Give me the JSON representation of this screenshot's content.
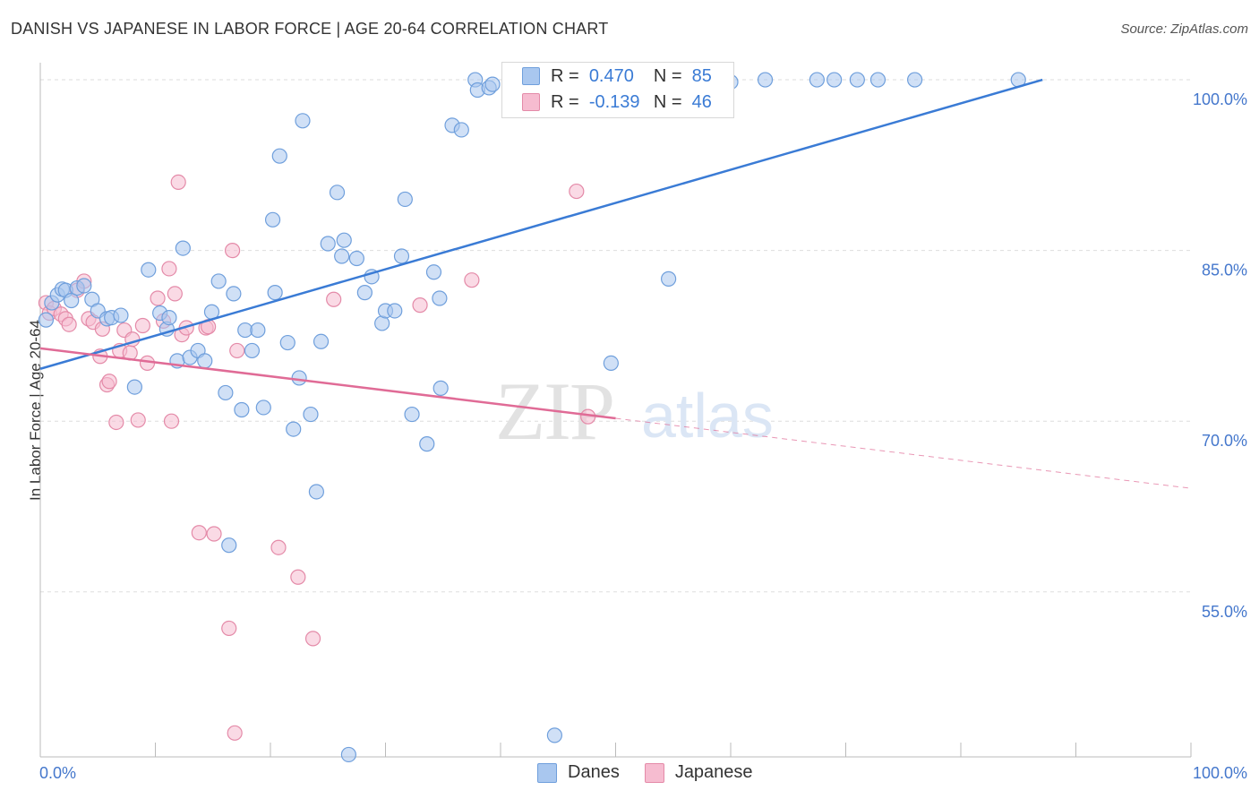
{
  "title": "DANISH VS JAPANESE IN LABOR FORCE | AGE 20-64 CORRELATION CHART",
  "source": "Source: ZipAtlas.com",
  "watermark": {
    "zip": "ZIP",
    "atlas": "atlas"
  },
  "legend": {
    "r_label": "R =",
    "n_label": "N =",
    "danes": {
      "r": "0.470",
      "n": "85"
    },
    "japanese": {
      "r": "-0.139",
      "n": "46"
    }
  },
  "bottom_legend": {
    "danes": "Danes",
    "japanese": "Japanese"
  },
  "colors": {
    "danes_fill": "#a9c7ef",
    "danes_stroke": "#6f9fdc",
    "danes_line": "#3a7bd5",
    "japanese_fill": "#f6bcd0",
    "japanese_stroke": "#e48aa8",
    "japanese_line": "#e06b96",
    "axis_text": "#4477cc"
  },
  "chart_data": {
    "type": "scatter",
    "title": "DANISH VS JAPANESE IN LABOR FORCE | AGE 20-64 CORRELATION CHART",
    "xlabel": "",
    "ylabel": "In Labor Force | Age 20-64",
    "xlim": [
      0,
      100
    ],
    "ylim": [
      40.5,
      101.5
    ],
    "x_tick_labels": [
      "0.0%",
      "100.0%"
    ],
    "y_ticks": [
      55,
      70,
      85,
      100
    ],
    "y_tick_labels": [
      "55.0%",
      "70.0%",
      "85.0%",
      "100.0%"
    ],
    "grid": true,
    "legend_position": "top-center",
    "series": [
      {
        "name": "Danes",
        "points": [
          [
            0.5,
            78.9
          ],
          [
            1.0,
            80.4
          ],
          [
            1.5,
            81.1
          ],
          [
            1.9,
            81.6
          ],
          [
            2.2,
            81.5
          ],
          [
            2.7,
            80.6
          ],
          [
            3.2,
            81.7
          ],
          [
            3.8,
            81.9
          ],
          [
            4.5,
            80.7
          ],
          [
            5.0,
            79.7
          ],
          [
            5.8,
            79.0
          ],
          [
            6.2,
            79.1
          ],
          [
            7.0,
            79.3
          ],
          [
            8.2,
            73.0
          ],
          [
            9.4,
            83.3
          ],
          [
            10.4,
            79.5
          ],
          [
            11.0,
            78.1
          ],
          [
            11.2,
            79.1
          ],
          [
            11.9,
            75.3
          ],
          [
            12.4,
            85.2
          ],
          [
            13.0,
            75.6
          ],
          [
            13.7,
            76.2
          ],
          [
            14.3,
            75.3
          ],
          [
            14.9,
            79.6
          ],
          [
            15.5,
            82.3
          ],
          [
            16.1,
            72.5
          ],
          [
            16.4,
            59.1
          ],
          [
            16.8,
            81.2
          ],
          [
            17.5,
            71.0
          ],
          [
            17.8,
            78.0
          ],
          [
            18.4,
            76.2
          ],
          [
            18.9,
            78.0
          ],
          [
            19.4,
            71.2
          ],
          [
            20.2,
            87.7
          ],
          [
            20.4,
            81.3
          ],
          [
            20.8,
            93.3
          ],
          [
            21.5,
            76.9
          ],
          [
            22.0,
            69.3
          ],
          [
            22.5,
            73.8
          ],
          [
            22.8,
            96.4
          ],
          [
            23.5,
            70.6
          ],
          [
            24.0,
            63.8
          ],
          [
            24.4,
            77.0
          ],
          [
            25.0,
            85.6
          ],
          [
            25.8,
            90.1
          ],
          [
            26.2,
            84.5
          ],
          [
            26.4,
            85.9
          ],
          [
            26.8,
            40.7
          ],
          [
            27.5,
            84.3
          ],
          [
            28.2,
            81.3
          ],
          [
            28.8,
            82.7
          ],
          [
            29.7,
            78.6
          ],
          [
            30.0,
            79.7
          ],
          [
            30.8,
            79.7
          ],
          [
            31.4,
            84.5
          ],
          [
            31.7,
            89.5
          ],
          [
            32.3,
            70.6
          ],
          [
            33.6,
            68.0
          ],
          [
            34.2,
            83.1
          ],
          [
            34.7,
            80.8
          ],
          [
            34.8,
            72.9
          ],
          [
            35.8,
            96.0
          ],
          [
            36.6,
            95.6
          ],
          [
            37.8,
            100.0
          ],
          [
            38.0,
            99.1
          ],
          [
            39.0,
            99.3
          ],
          [
            39.3,
            99.6
          ],
          [
            42.0,
            100.0
          ],
          [
            44.7,
            42.4
          ],
          [
            46.0,
            99.9
          ],
          [
            49.0,
            100.0
          ],
          [
            49.6,
            75.1
          ],
          [
            51.7,
            99.9
          ],
          [
            52.8,
            100.0
          ],
          [
            54.0,
            100.0
          ],
          [
            54.6,
            82.5
          ],
          [
            55.0,
            100.0
          ],
          [
            60.0,
            99.8
          ],
          [
            63.0,
            100.0
          ],
          [
            67.5,
            100.0
          ],
          [
            69.0,
            100.0
          ],
          [
            71.0,
            100.0
          ],
          [
            72.8,
            100.0
          ],
          [
            76.0,
            100.0
          ],
          [
            85.0,
            100.0
          ]
        ],
        "trendline": {
          "x": [
            0,
            87.1
          ],
          "y": [
            74.6,
            100.0
          ]
        }
      },
      {
        "name": "Japanese",
        "points": [
          [
            0.5,
            80.4
          ],
          [
            0.8,
            79.5
          ],
          [
            1.2,
            79.9
          ],
          [
            1.8,
            79.4
          ],
          [
            2.2,
            79.0
          ],
          [
            2.5,
            78.5
          ],
          [
            3.2,
            81.5
          ],
          [
            3.8,
            82.3
          ],
          [
            4.2,
            79.0
          ],
          [
            4.6,
            78.7
          ],
          [
            5.2,
            75.7
          ],
          [
            5.4,
            78.1
          ],
          [
            5.8,
            73.2
          ],
          [
            6.0,
            73.5
          ],
          [
            6.6,
            69.9
          ],
          [
            6.9,
            76.2
          ],
          [
            7.3,
            78.0
          ],
          [
            7.8,
            76.0
          ],
          [
            8.0,
            77.2
          ],
          [
            8.5,
            70.1
          ],
          [
            8.9,
            78.4
          ],
          [
            9.3,
            75.1
          ],
          [
            10.2,
            80.8
          ],
          [
            10.7,
            78.8
          ],
          [
            11.2,
            83.4
          ],
          [
            11.4,
            70.0
          ],
          [
            11.7,
            81.2
          ],
          [
            12.0,
            91.0
          ],
          [
            12.3,
            77.6
          ],
          [
            12.7,
            78.2
          ],
          [
            13.8,
            60.2
          ],
          [
            14.4,
            78.2
          ],
          [
            14.6,
            78.3
          ],
          [
            15.1,
            60.1
          ],
          [
            16.4,
            51.8
          ],
          [
            16.7,
            85.0
          ],
          [
            16.9,
            42.6
          ],
          [
            17.1,
            76.2
          ],
          [
            20.7,
            58.9
          ],
          [
            22.4,
            56.3
          ],
          [
            23.7,
            50.9
          ],
          [
            25.5,
            80.7
          ],
          [
            33.0,
            80.2
          ],
          [
            37.5,
            82.4
          ],
          [
            46.6,
            90.2
          ],
          [
            47.6,
            70.4
          ]
        ],
        "trendline": {
          "x": [
            0,
            100
          ],
          "y": [
            76.4,
            64.1
          ],
          "solid_to_x": 50
        }
      }
    ]
  }
}
